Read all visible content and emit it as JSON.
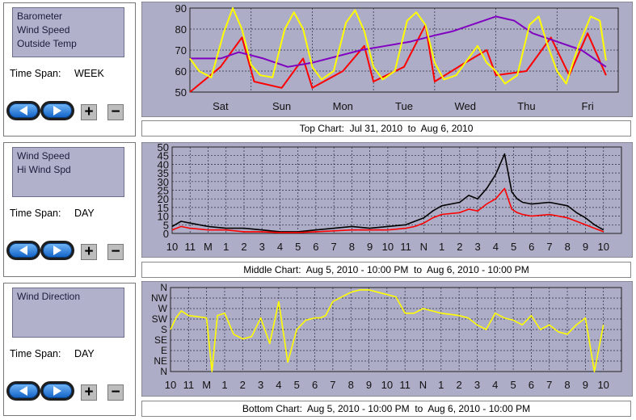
{
  "panels": [
    {
      "series": [
        "Barometer",
        "Wind Speed",
        "Outside Temp"
      ],
      "time_span_label": "Time Span:",
      "time_span_value": "WEEK"
    },
    {
      "series": [
        "Wind Speed",
        "Hi Wind Spd"
      ],
      "time_span_label": "Time Span:",
      "time_span_value": "DAY"
    },
    {
      "series": [
        "Wind Direction"
      ],
      "time_span_label": "Time Span:",
      "time_span_value": "DAY"
    }
  ],
  "buttons": {
    "plus": "+",
    "minus": "−"
  },
  "icons": {
    "back": "left-arrow-icon",
    "forward": "right-arrow-icon"
  },
  "colors": {
    "plot_bg": "#adadc7",
    "grid": "#2a2a3a",
    "temp": "#ffff00",
    "baro": "#8000c0",
    "wind": "#ff0000",
    "hiwind": "#000000",
    "dir": "#ffff00"
  },
  "chart_titles": [
    "Top Chart:  Jul 31, 2010  to  Aug 6, 2010",
    "Middle Chart:  Aug 5, 2010 - 10:00 PM  to  Aug 6, 2010 - 10:00 PM",
    "Bottom Chart:  Aug 5, 2010 - 10:00 PM  to  Aug 6, 2010 - 10:00 PM"
  ],
  "chart_data": [
    {
      "type": "line",
      "x_labels": [
        "Sat",
        "Sun",
        "Mon",
        "Tue",
        "Wed",
        "Thu",
        "Fri"
      ],
      "ylim": [
        50,
        90
      ],
      "y_ticks": [
        50,
        60,
        70,
        80,
        90
      ],
      "grid": true,
      "series": [
        {
          "name": "Outside Temp",
          "color": "#ffff00",
          "x": [
            0,
            0.15,
            0.35,
            0.55,
            0.7,
            0.85,
            1.0,
            1.15,
            1.35,
            1.55,
            1.7,
            1.85,
            2.0,
            2.15,
            2.35,
            2.55,
            2.7,
            2.85,
            3.0,
            3.15,
            3.35,
            3.55,
            3.7,
            3.85,
            4.0,
            4.15,
            4.35,
            4.55,
            4.7,
            4.85,
            5.0,
            5.15,
            5.35,
            5.55,
            5.7,
            5.85,
            6.0,
            6.15,
            6.35,
            6.55,
            6.7,
            6.8
          ],
          "values": [
            66,
            60,
            57,
            78,
            90,
            80,
            63,
            58,
            57,
            80,
            88,
            80,
            62,
            56,
            60,
            83,
            89,
            79,
            62,
            56,
            60,
            84,
            88,
            82,
            64,
            56,
            58,
            66,
            72,
            64,
            60,
            54,
            58,
            82,
            86,
            72,
            60,
            54,
            72,
            86,
            84,
            65
          ]
        },
        {
          "name": "Barometer",
          "color": "#8000c0",
          "x": [
            0,
            0.5,
            0.8,
            1.2,
            1.6,
            2.0,
            2.4,
            2.8,
            3.2,
            3.6,
            4.0,
            4.3,
            4.7,
            5.0,
            5.3,
            5.6,
            6.0,
            6.4,
            6.8
          ],
          "values": [
            66,
            66,
            69,
            66,
            62,
            64,
            67,
            70,
            72,
            74,
            77,
            79,
            83,
            86,
            84,
            78,
            74,
            70,
            62
          ]
        },
        {
          "name": "Wind Speed",
          "color": "#ff0000",
          "x": [
            0,
            0.5,
            0.85,
            1.05,
            1.5,
            1.85,
            2.0,
            2.5,
            2.85,
            3.0,
            3.5,
            3.85,
            4.0,
            4.5,
            4.85,
            5.0,
            5.5,
            5.9,
            6.2,
            6.5,
            6.8
          ],
          "values": [
            50,
            62,
            76,
            55,
            52,
            66,
            52,
            60,
            72,
            55,
            62,
            82,
            55,
            64,
            70,
            58,
            60,
            76,
            58,
            78,
            58
          ]
        }
      ]
    },
    {
      "type": "line",
      "x_labels": [
        "10",
        "11",
        "M",
        "1",
        "2",
        "3",
        "4",
        "5",
        "6",
        "7",
        "8",
        "9",
        "10",
        "11",
        "N",
        "1",
        "2",
        "3",
        "4",
        "5",
        "6",
        "7",
        "8",
        "9",
        "10"
      ],
      "ylim": [
        0,
        50
      ],
      "y_ticks": [
        0,
        5,
        10,
        15,
        20,
        25,
        30,
        35,
        40,
        45,
        50
      ],
      "grid": true,
      "series": [
        {
          "name": "Hi Wind Spd",
          "color": "#000000",
          "x": [
            0,
            0.5,
            1,
            2,
            3,
            4,
            5,
            6,
            7,
            8,
            9,
            10,
            11,
            12,
            13,
            13.5,
            14,
            14.5,
            15,
            16,
            16.5,
            17,
            17.5,
            18,
            18.5,
            18.9,
            19.2,
            19.5,
            20,
            21,
            22,
            22.5,
            23,
            23.5,
            24
          ],
          "values": [
            4,
            7,
            6,
            4,
            3,
            3,
            2,
            1,
            1,
            2,
            3,
            4,
            3,
            4,
            5,
            7,
            9,
            13,
            16,
            18,
            22,
            20,
            26,
            34,
            46,
            24,
            20,
            18,
            17,
            18,
            16,
            12,
            9,
            5,
            2
          ]
        },
        {
          "name": "Wind Speed",
          "color": "#ff0000",
          "x": [
            0,
            0.5,
            1,
            2,
            3,
            4,
            5,
            6,
            7,
            8,
            9,
            10,
            11,
            12,
            13,
            13.5,
            14,
            14.5,
            15,
            16,
            16.5,
            17,
            17.5,
            18,
            18.5,
            18.9,
            19.2,
            19.5,
            20,
            21,
            22,
            22.5,
            23,
            23.5,
            24
          ],
          "values": [
            2,
            4,
            3,
            2,
            2,
            1,
            1,
            0.5,
            0.5,
            1,
            1.5,
            2,
            2,
            2,
            3,
            4,
            6,
            9,
            11,
            12,
            14,
            13,
            17,
            20,
            26,
            14,
            12,
            11,
            10,
            11,
            9,
            7,
            5,
            3,
            1
          ]
        }
      ]
    },
    {
      "type": "line",
      "x_labels": [
        "10",
        "11",
        "M",
        "1",
        "2",
        "3",
        "4",
        "5",
        "6",
        "7",
        "8",
        "9",
        "10",
        "11",
        "N",
        "1",
        "2",
        "3",
        "4",
        "5",
        "6",
        "7",
        "8",
        "9",
        "10"
      ],
      "y_labels": [
        "N",
        "NE",
        "E",
        "SE",
        "S",
        "SW",
        "W",
        "NW",
        "N"
      ],
      "ylim": [
        0,
        360
      ],
      "grid": true,
      "series": [
        {
          "name": "Wind Direction",
          "color": "#ffff00",
          "x": [
            0,
            0.3,
            0.6,
            1,
            1.5,
            2,
            2.3,
            2.6,
            3,
            3.5,
            4,
            4.5,
            5,
            5.5,
            6,
            6.5,
            7,
            7.5,
            8,
            8.3,
            8.6,
            9,
            9.5,
            10,
            10.5,
            11,
            11.5,
            12,
            12.5,
            13,
            13.5,
            14,
            14.5,
            15,
            15.5,
            16,
            16.5,
            17,
            17.5,
            18,
            18.5,
            19,
            19.5,
            20,
            20.5,
            21,
            21.5,
            22,
            22.5,
            23,
            23.5,
            24
          ],
          "values": [
            180,
            230,
            260,
            240,
            235,
            230,
            0,
            240,
            250,
            160,
            140,
            150,
            230,
            120,
            300,
            40,
            180,
            220,
            230,
            230,
            240,
            300,
            320,
            340,
            350,
            350,
            340,
            330,
            320,
            250,
            250,
            270,
            260,
            250,
            245,
            240,
            230,
            200,
            180,
            250,
            230,
            220,
            200,
            240,
            180,
            200,
            170,
            160,
            200,
            230,
            0,
            200
          ]
        }
      ]
    }
  ]
}
